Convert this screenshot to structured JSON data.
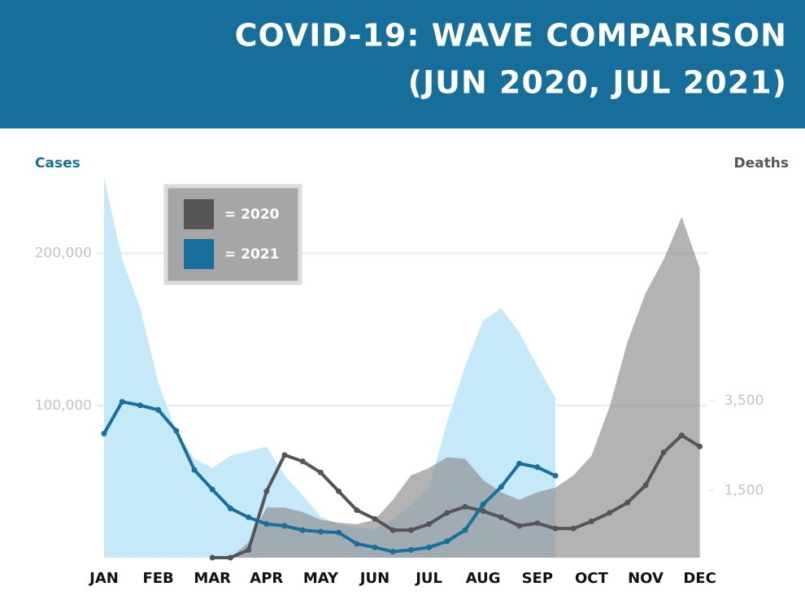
{
  "chart_data": {
    "type": "area-line",
    "title": "COVID-19: WAVE COMPARISON",
    "subtitle": "(JUN 2020, JUL 2021)",
    "ylabel": "Cases",
    "y2label": "Deaths",
    "categories": [
      "JAN",
      null,
      null,
      "FEB",
      null,
      null,
      "MAR",
      null,
      null,
      "APR",
      null,
      null,
      "MAY",
      null,
      null,
      "JUN",
      null,
      null,
      "JUL",
      null,
      null,
      "AUG",
      null,
      null,
      "SEP",
      null,
      null,
      "OCT",
      null,
      null,
      "NOV",
      null,
      null,
      "DEC"
    ],
    "ylim": [
      0,
      265000
    ],
    "yticks": [
      {
        "value": 100000,
        "label": "100,000"
      },
      {
        "value": 200000,
        "label": "200,000"
      }
    ],
    "y2lim": [
      0,
      9000
    ],
    "y2ticks": [
      {
        "value": 1500,
        "label": "1,500"
      },
      {
        "value": 3500,
        "label": "3,500"
      }
    ],
    "grid": true,
    "legend": [
      {
        "label": "= 2020",
        "color": "#555555"
      },
      {
        "label": "= 2021",
        "color": "#176f9b"
      }
    ],
    "series": [
      {
        "kind": "area",
        "color": "#c6e9fa",
        "values": [
          250000,
          196000,
          164000,
          115000,
          83000,
          65000,
          59000,
          67000,
          70000,
          73000,
          54000,
          41000,
          27000,
          22000,
          20000,
          19000,
          25000,
          35000,
          46000,
          89000,
          126000,
          156000,
          164000,
          148000,
          126000,
          105000,
          null,
          null,
          null,
          null,
          null,
          null,
          null,
          null
        ]
      },
      {
        "kind": "area",
        "color": "#8f8f8f",
        "values": [
          0,
          0,
          0,
          0,
          0,
          0,
          0,
          0,
          10000,
          33000,
          33000,
          30000,
          25000,
          23000,
          22000,
          25000,
          38000,
          54000,
          59000,
          66000,
          65000,
          51000,
          43000,
          38000,
          43000,
          46000,
          54000,
          67000,
          99000,
          142000,
          174000,
          196000,
          224000,
          190000
        ]
      },
      {
        "kind": "line",
        "axis": "y2",
        "color": "#555555",
        "values": [
          null,
          null,
          null,
          null,
          null,
          null,
          0,
          0,
          173,
          1480,
          2290,
          2150,
          1900,
          1480,
          1060,
          865,
          615,
          615,
          750,
          1000,
          1135,
          1040,
          900,
          710,
          770,
          650,
          650,
          810,
          1000,
          1230,
          1615,
          2350,
          2730,
          2480
        ]
      },
      {
        "kind": "line",
        "axis": "y2",
        "color": "#176f9b",
        "values": [
          2770,
          3480,
          3400,
          3300,
          2830,
          1960,
          1520,
          1100,
          900,
          750,
          710,
          615,
          580,
          560,
          310,
          230,
          135,
          173,
          230,
          365,
          615,
          1190,
          1580,
          2100,
          2020,
          1830,
          null,
          null,
          null,
          null,
          null,
          null,
          null,
          null
        ]
      }
    ]
  }
}
